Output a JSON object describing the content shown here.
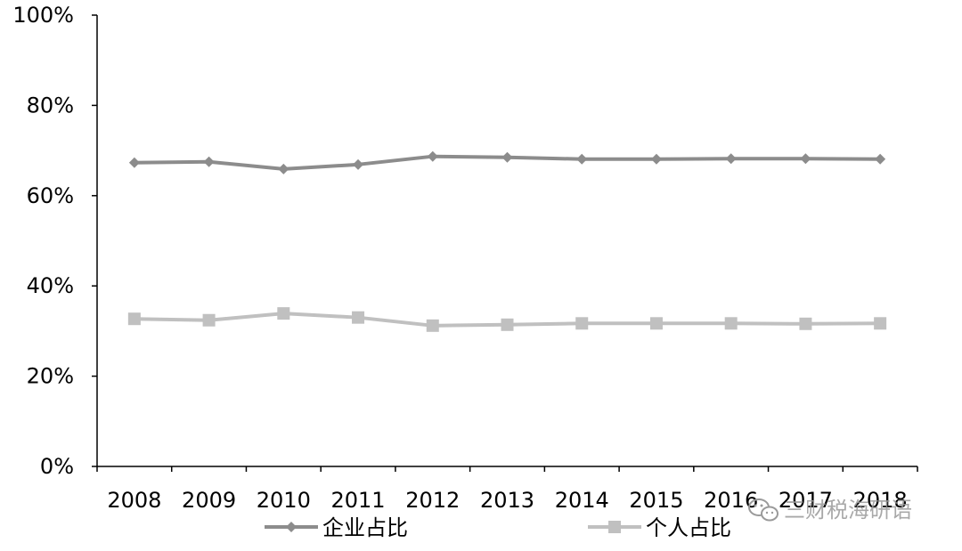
{
  "chart_data": {
    "type": "line",
    "title": "",
    "xlabel": "",
    "ylabel": "",
    "categories": [
      "2008",
      "2009",
      "2010",
      "2011",
      "2012",
      "2013",
      "2014",
      "2015",
      "2016",
      "2017",
      "2018"
    ],
    "ylim": [
      0,
      100
    ],
    "yticks": [
      0,
      20,
      40,
      60,
      80,
      100
    ],
    "ytick_labels": [
      "0%",
      "20%",
      "40%",
      "60%",
      "80%",
      "100%"
    ],
    "grid": false,
    "legend_position": "bottom",
    "series": [
      {
        "name": "企业占比",
        "marker": "diamond",
        "color": "#8c8c8c",
        "values": [
          67.3,
          67.5,
          65.9,
          66.9,
          68.7,
          68.5,
          68.1,
          68.1,
          68.2,
          68.2,
          68.1
        ]
      },
      {
        "name": "个人占比",
        "marker": "square",
        "color": "#c0c0c0",
        "values": [
          32.7,
          32.4,
          33.9,
          33.0,
          31.2,
          31.4,
          31.7,
          31.7,
          31.7,
          31.6,
          31.7
        ]
      }
    ]
  },
  "watermark": {
    "text": "三财税海研语",
    "icon": "wechat-icon"
  },
  "colors": {
    "axis": "#000000",
    "series_1": "#8c8c8c",
    "series_2": "#c0c0c0",
    "watermark": "#9a9a9a"
  }
}
